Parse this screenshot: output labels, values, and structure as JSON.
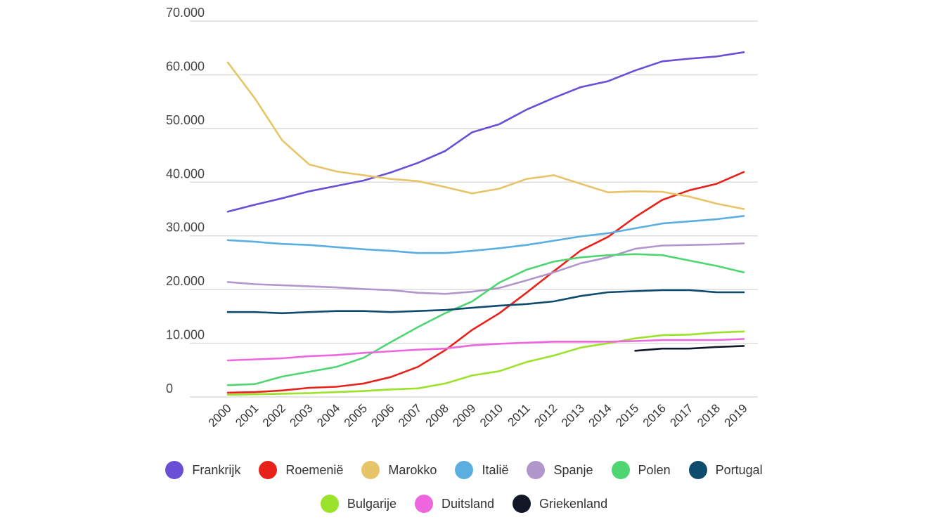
{
  "chart_data": {
    "type": "line",
    "title": "",
    "xlabel": "",
    "ylabel": "",
    "ylim": [
      0,
      70000
    ],
    "y_ticks": [
      "0",
      "10.000",
      "20.000",
      "30.000",
      "40.000",
      "50.000",
      "60.000",
      "70.000"
    ],
    "y_tick_values": [
      0,
      10000,
      20000,
      30000,
      40000,
      50000,
      60000,
      70000
    ],
    "grid": true,
    "legend_position": "bottom",
    "categories": [
      "2000",
      "2001",
      "2002",
      "2003",
      "2004",
      "2005",
      "2006",
      "2007",
      "2008",
      "2009",
      "2010",
      "2011",
      "2012",
      "2013",
      "2014",
      "2015",
      "2016",
      "2017",
      "2018",
      "2019"
    ],
    "series": [
      {
        "name": "Frankrijk",
        "color": "#6a4fd6",
        "values": [
          34500,
          35800,
          37000,
          38300,
          39300,
          40300,
          41800,
          43600,
          45800,
          49300,
          50800,
          53500,
          55700,
          57700,
          58800,
          60800,
          62500,
          63000,
          63400,
          64200
        ]
      },
      {
        "name": "Roemenië",
        "color": "#e8221a",
        "values": [
          800,
          900,
          1200,
          1700,
          1900,
          2500,
          3700,
          5600,
          8700,
          12500,
          15600,
          19400,
          23400,
          27300,
          29800,
          33500,
          36700,
          38500,
          39700,
          41900
        ]
      },
      {
        "name": "Marokko",
        "color": "#e8c468",
        "values": [
          62300,
          55600,
          47800,
          43300,
          42000,
          41300,
          40600,
          40200,
          39100,
          37900,
          38800,
          40600,
          41300,
          39700,
          38100,
          38300,
          38200,
          37300,
          36000,
          35000
        ]
      },
      {
        "name": "Italië",
        "color": "#5aafe0",
        "values": [
          29200,
          28900,
          28500,
          28300,
          27900,
          27500,
          27200,
          26800,
          26800,
          27200,
          27700,
          28300,
          29100,
          29900,
          30500,
          31400,
          32300,
          32700,
          33100,
          33700
        ]
      },
      {
        "name": "Spanje",
        "color": "#b196cc",
        "values": [
          21400,
          21000,
          20800,
          20600,
          20400,
          20100,
          19900,
          19400,
          19200,
          19600,
          20300,
          21700,
          23200,
          24900,
          26000,
          27600,
          28200,
          28300,
          28400,
          28600
        ]
      },
      {
        "name": "Polen",
        "color": "#4fd673",
        "values": [
          2200,
          2400,
          3800,
          4700,
          5600,
          7300,
          10200,
          13000,
          15600,
          17800,
          21300,
          23700,
          25200,
          26000,
          26400,
          26600,
          26400,
          25400,
          24400,
          23200
        ]
      },
      {
        "name": "Portugal",
        "color": "#0e4c6e",
        "values": [
          15800,
          15800,
          15600,
          15800,
          16000,
          16000,
          15800,
          16000,
          16200,
          16600,
          17000,
          17300,
          17800,
          18800,
          19500,
          19700,
          19900,
          19900,
          19500,
          19500
        ]
      },
      {
        "name": "Bulgarije",
        "color": "#9be22a",
        "values": [
          400,
          500,
          600,
          700,
          900,
          1100,
          1400,
          1600,
          2500,
          4000,
          4800,
          6500,
          7700,
          9200,
          10000,
          10900,
          11500,
          11600,
          12000,
          12200
        ]
      },
      {
        "name": "Duitsland",
        "color": "#ee66dd",
        "values": [
          6800,
          7000,
          7200,
          7600,
          7800,
          8200,
          8500,
          8800,
          9000,
          9600,
          9900,
          10100,
          10300,
          10300,
          10300,
          10400,
          10600,
          10600,
          10600,
          10800
        ]
      },
      {
        "name": "Griekenland",
        "color": "#101828",
        "values": [
          null,
          null,
          null,
          null,
          null,
          null,
          null,
          null,
          null,
          null,
          null,
          null,
          null,
          null,
          null,
          8600,
          9000,
          9000,
          9300,
          9500
        ]
      }
    ]
  }
}
